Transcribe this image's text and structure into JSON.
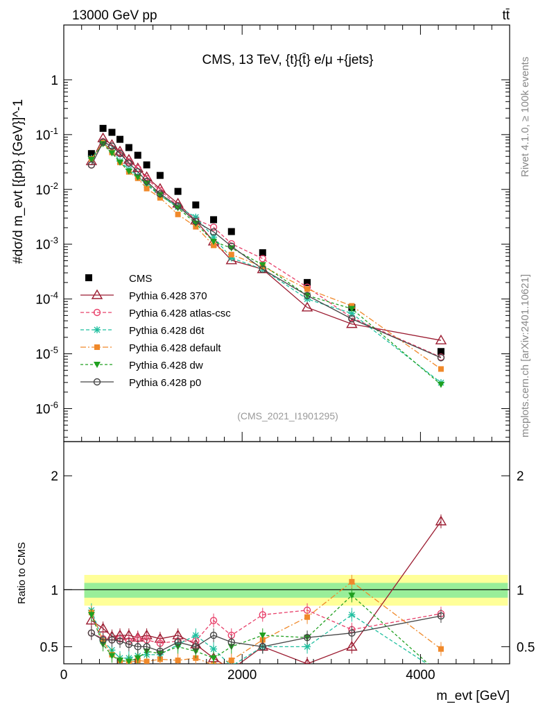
{
  "header": {
    "left": "13000 GeV pp",
    "right": "tt̄"
  },
  "side_labels": {
    "rivet": "Rivet 4.1.0, ≥ 100k events",
    "mcplots": "mcplots.cern.ch [arXiv:2401.10621]"
  },
  "chart_data": {
    "type": "line",
    "title": "CMS, 13 TeV, {t}{t̄} e/μ +{jets}",
    "annotation": "(CMS_2021_I1901295)",
    "xlabel": "m_evt [GeV]",
    "ylabel": "#dσ/d m_evt [{pb} {GeV}]^-1",
    "ratio_ylabel": "Ratio to CMS",
    "x_range": [
      0,
      5000
    ],
    "x_ticks": [
      "0",
      "2000",
      "4000"
    ],
    "y_range_log": [
      2.5e-07,
      10
    ],
    "y_ticks": [
      "1",
      "10^-1",
      "10^-2",
      "10^-3",
      "10^-4",
      "10^-5",
      "10^-6"
    ],
    "ratio_range": [
      0.35,
      2.3
    ],
    "ratio_ticks": [
      "0.5",
      "1",
      "2"
    ],
    "x": [
      310,
      440,
      540,
      630,
      730,
      830,
      930,
      1080,
      1280,
      1480,
      1680,
      1880,
      2230,
      2730,
      3230,
      4230
    ],
    "data": {
      "name": "CMS",
      "values": [
        0.045,
        0.13,
        0.11,
        0.082,
        0.058,
        0.042,
        0.028,
        0.018,
        0.0092,
        0.0052,
        0.0028,
        0.0017,
        0.0007,
        0.0002,
        7e-05,
        1.1e-05
      ]
    },
    "series": [
      {
        "name": "Pythia 6.428 370",
        "color": "#9b1b30",
        "ratio": [
          0.73,
          0.66,
          0.59,
          0.6,
          0.6,
          0.58,
          0.6,
          0.57,
          0.6,
          0.52,
          0.4,
          0.3,
          0.5,
          0.35,
          0.5,
          1.6
        ]
      },
      {
        "name": "Pythia 6.428 atlas-csc",
        "color": "#e8406a",
        "ratio": [
          0.62,
          0.57,
          0.56,
          0.57,
          0.55,
          0.57,
          0.56,
          0.53,
          0.55,
          0.55,
          0.73,
          0.6,
          0.78,
          0.82,
          0.65,
          0.79
        ]
      },
      {
        "name": "Pythia 6.428 d6t",
        "color": "#1fbf9f",
        "ratio": [
          0.82,
          0.55,
          0.47,
          0.4,
          0.4,
          0.42,
          0.43,
          0.43,
          0.52,
          0.6,
          0.48,
          0.33,
          0.5,
          0.5,
          0.78,
          0.27
        ]
      },
      {
        "name": "Pythia 6.428 default",
        "color": "#f0892a",
        "ratio": [
          0.8,
          0.55,
          0.43,
          0.38,
          0.36,
          0.38,
          0.37,
          0.39,
          0.38,
          0.4,
          0.34,
          0.38,
          0.56,
          0.76,
          1.07,
          0.48
        ]
      },
      {
        "name": "Pythia 6.428 dw",
        "color": "#20a020",
        "ratio": [
          0.78,
          0.52,
          0.42,
          0.38,
          0.37,
          0.4,
          0.46,
          0.44,
          0.5,
          0.46,
          0.4,
          0.5,
          0.6,
          0.58,
          0.95,
          0.25
        ]
      },
      {
        "name": "Pythia 6.428 p0",
        "color": "#444444",
        "ratio": [
          0.62,
          0.56,
          0.56,
          0.55,
          0.52,
          0.5,
          0.5,
          0.46,
          0.54,
          0.5,
          0.6,
          0.54,
          0.5,
          0.58,
          0.62,
          0.77
        ]
      }
    ],
    "legend_position": "left"
  }
}
